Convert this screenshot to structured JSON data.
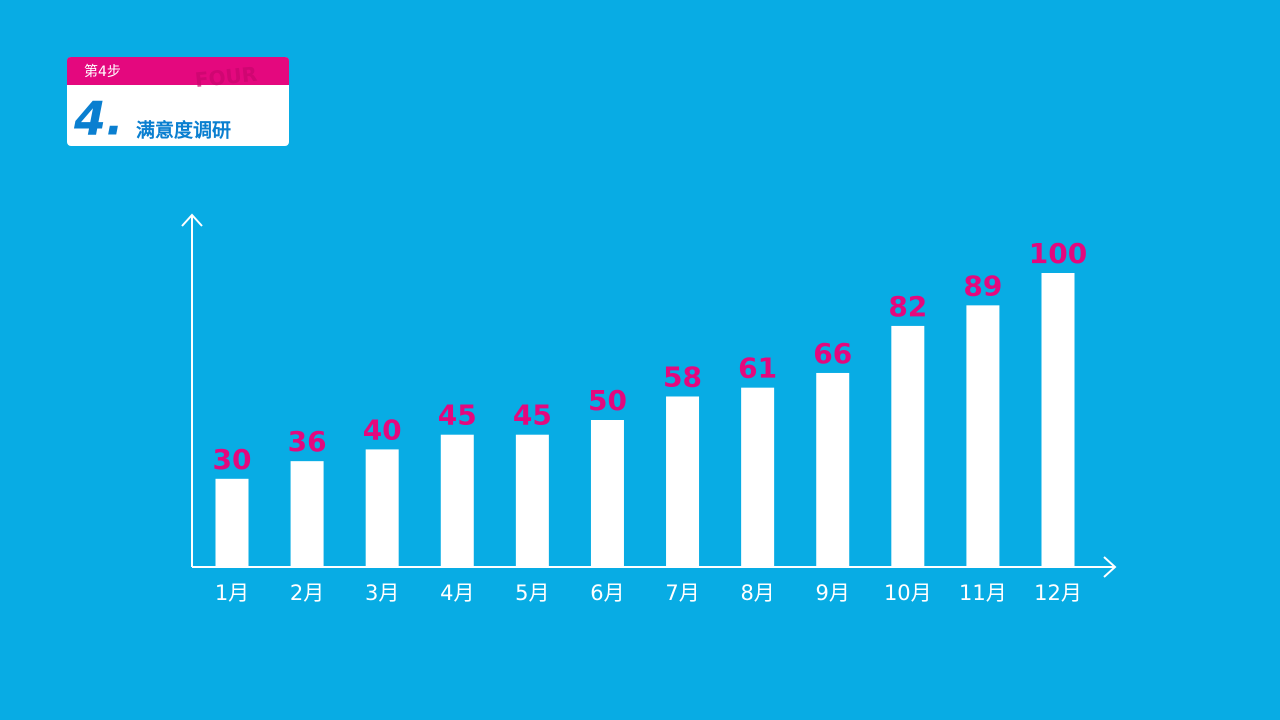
{
  "header": {
    "step": "第4步",
    "watermark": "FOUR",
    "number": "4.",
    "title": "满意度调研"
  },
  "chart_data": {
    "type": "bar",
    "categories": [
      "1月",
      "2月",
      "3月",
      "4月",
      "5月",
      "6月",
      "7月",
      "8月",
      "9月",
      "10月",
      "11月",
      "12月"
    ],
    "values": [
      30,
      36,
      40,
      45,
      45,
      50,
      58,
      61,
      66,
      82,
      89,
      100
    ],
    "color": "#ffffff",
    "label_color": "#e4087e",
    "ylim": [
      0,
      100
    ]
  }
}
